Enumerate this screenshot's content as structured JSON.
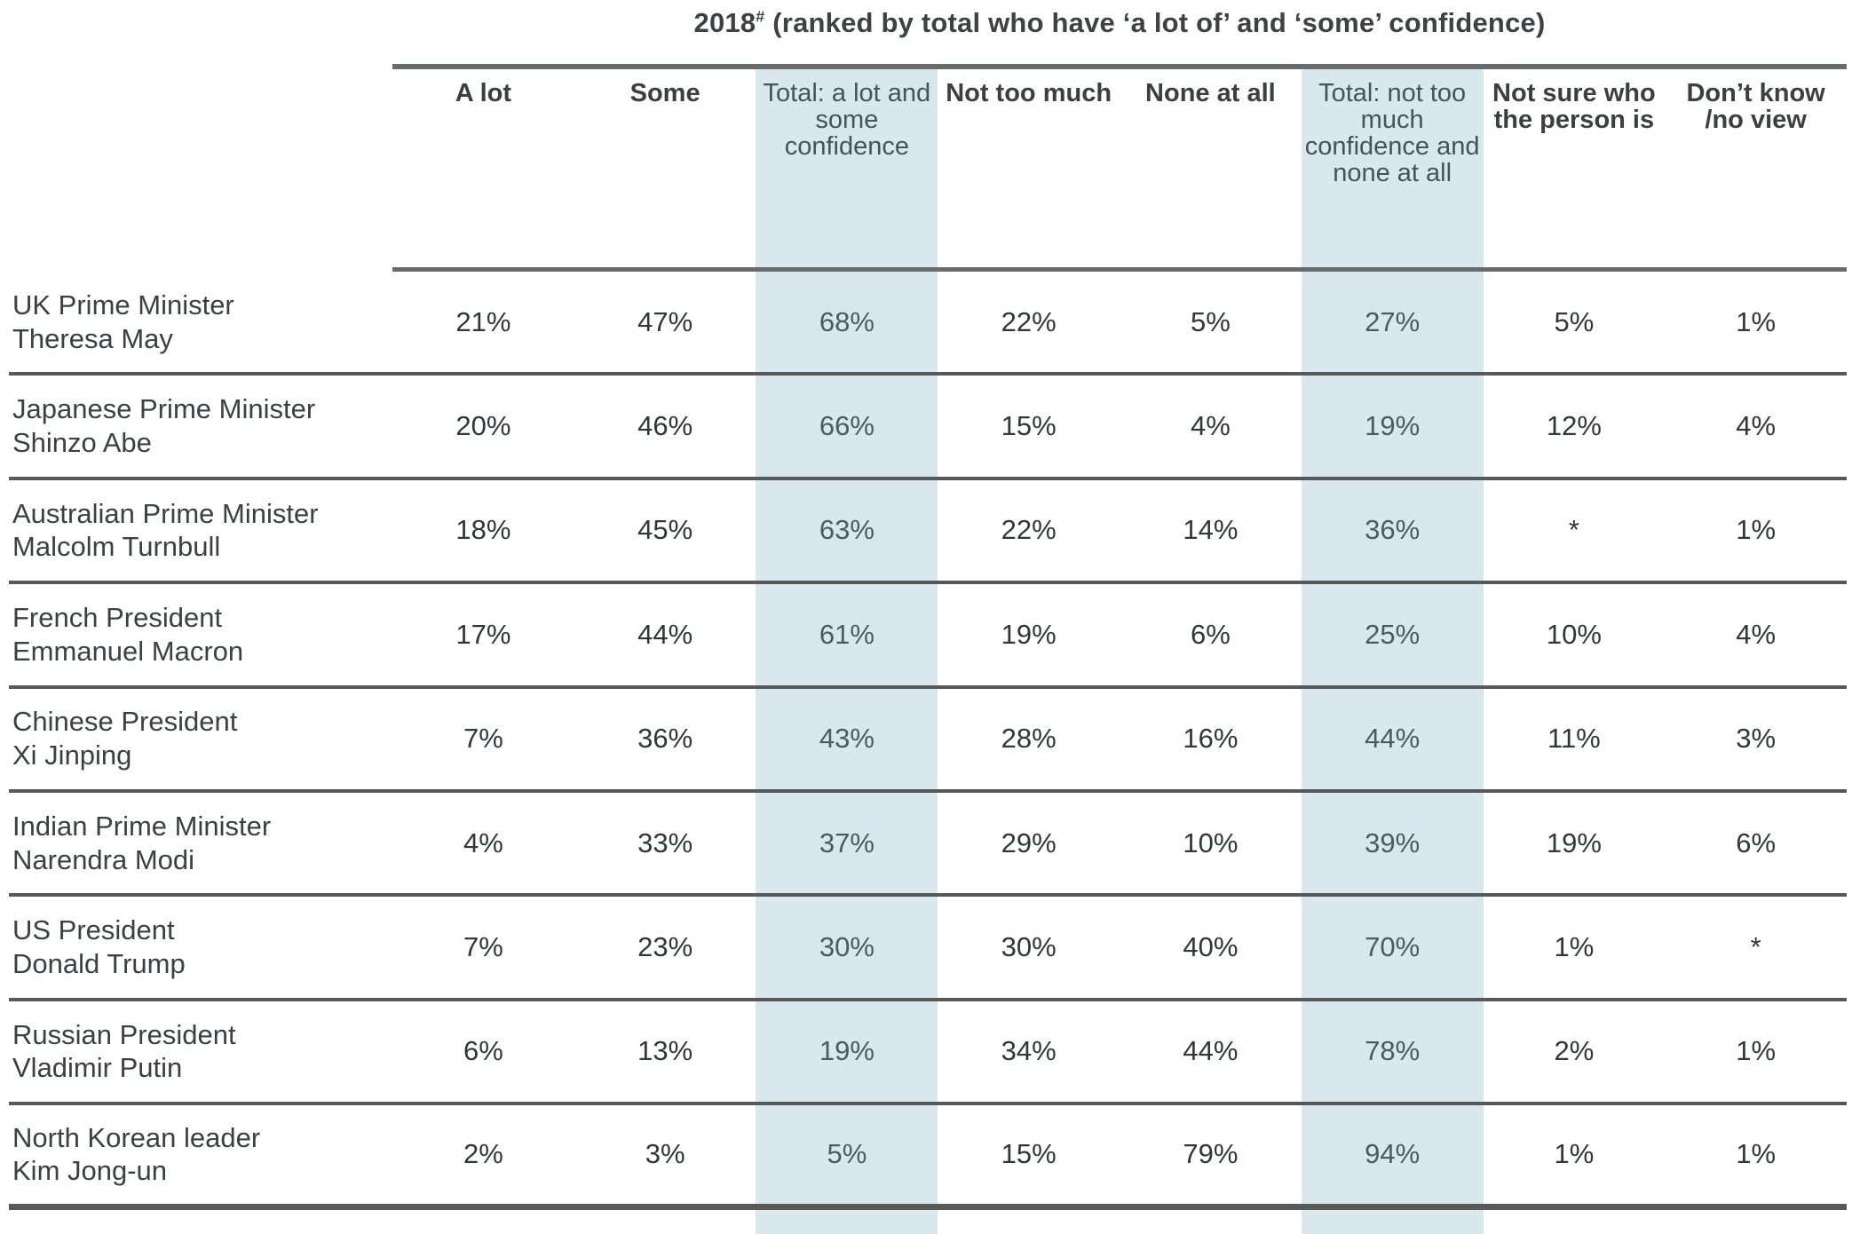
{
  "title": {
    "year": "2018",
    "superscript": "#",
    "rest": " (ranked by total who have ‘a lot of’ and ‘some’ confidence)"
  },
  "colors": {
    "highlight_band": "#d8e8ec",
    "text_primary": "#333639",
    "text_highlight_column": "#4d5a62",
    "header_rule": "#6a6b6d",
    "row_rule": "#57585a"
  },
  "table": {
    "columns": [
      {
        "label": "A lot",
        "highlighted": false
      },
      {
        "label": "Some",
        "highlighted": false
      },
      {
        "label": "Total: a lot and some confidence",
        "highlighted": true
      },
      {
        "label": "Not too much",
        "highlighted": false
      },
      {
        "label": "None at all",
        "highlighted": false
      },
      {
        "label": "Total: not too much confidence and none at all",
        "highlighted": true
      },
      {
        "label": "Not sure who the person is",
        "highlighted": false
      },
      {
        "label": "Don’t know /no view",
        "highlighted": false
      }
    ],
    "rows": [
      {
        "line1": "UK Prime Minister",
        "line2": "Theresa May",
        "values": [
          "21%",
          "47%",
          "68%",
          "22%",
          "5%",
          "27%",
          "5%",
          "1%"
        ]
      },
      {
        "line1": "Japanese Prime Minister",
        "line2": "Shinzo Abe",
        "values": [
          "20%",
          "46%",
          "66%",
          "15%",
          "4%",
          "19%",
          "12%",
          "4%"
        ]
      },
      {
        "line1": "Australian Prime Minister",
        "line2": "Malcolm Turnbull",
        "values": [
          "18%",
          "45%",
          "63%",
          "22%",
          "14%",
          "36%",
          "*",
          "1%"
        ]
      },
      {
        "line1": "French President",
        "line2": "Emmanuel Macron",
        "values": [
          "17%",
          "44%",
          "61%",
          "19%",
          "6%",
          "25%",
          "10%",
          "4%"
        ]
      },
      {
        "line1": "Chinese President",
        "line2": "Xi Jinping",
        "values": [
          "7%",
          "36%",
          "43%",
          "28%",
          "16%",
          "44%",
          "11%",
          "3%"
        ]
      },
      {
        "line1": "Indian Prime Minister",
        "line2": "Narendra Modi",
        "values": [
          "4%",
          "33%",
          "37%",
          "29%",
          "10%",
          "39%",
          "19%",
          "6%"
        ]
      },
      {
        "line1": "US President",
        "line2": "Donald Trump",
        "values": [
          "7%",
          "23%",
          "30%",
          "30%",
          "40%",
          "70%",
          "1%",
          "*"
        ]
      },
      {
        "line1": "Russian President",
        "line2": "Vladimir Putin",
        "values": [
          "6%",
          "13%",
          "19%",
          "34%",
          "44%",
          "78%",
          "2%",
          "1%"
        ]
      },
      {
        "line1": "North Korean leader",
        "line2": "Kim Jong-un",
        "values": [
          "2%",
          "3%",
          "5%",
          "15%",
          "79%",
          "94%",
          "1%",
          "1%"
        ]
      }
    ]
  },
  "chart_data": {
    "type": "table",
    "title": "2018# (ranked by total who have ‘a lot of’ and ‘some’ confidence)",
    "columns": [
      "A lot",
      "Some",
      "Total: a lot and some confidence",
      "Not too much",
      "None at all",
      "Total: not too much confidence and none at all",
      "Not sure who the person is",
      "Don’t know /no view"
    ],
    "row_labels": [
      "UK Prime Minister Theresa May",
      "Japanese Prime Minister Shinzo Abe",
      "Australian Prime Minister Malcolm Turnbull",
      "French President Emmanuel Macron",
      "Chinese President Xi Jinping",
      "Indian Prime Minister Narendra Modi",
      "US President Donald Trump",
      "Russian President Vladimir Putin",
      "North Korean leader Kim Jong-un"
    ],
    "values": [
      [
        "21%",
        "47%",
        "68%",
        "22%",
        "5%",
        "27%",
        "5%",
        "1%"
      ],
      [
        "20%",
        "46%",
        "66%",
        "15%",
        "4%",
        "19%",
        "12%",
        "4%"
      ],
      [
        "18%",
        "45%",
        "63%",
        "22%",
        "14%",
        "36%",
        "*",
        "1%"
      ],
      [
        "17%",
        "44%",
        "61%",
        "19%",
        "6%",
        "25%",
        "10%",
        "4%"
      ],
      [
        "7%",
        "36%",
        "43%",
        "28%",
        "16%",
        "44%",
        "11%",
        "3%"
      ],
      [
        "4%",
        "33%",
        "37%",
        "29%",
        "10%",
        "39%",
        "19%",
        "6%"
      ],
      [
        "7%",
        "23%",
        "30%",
        "30%",
        "40%",
        "70%",
        "1%",
        "*"
      ],
      [
        "6%",
        "13%",
        "19%",
        "34%",
        "44%",
        "78%",
        "2%",
        "1%"
      ],
      [
        "2%",
        "3%",
        "5%",
        "15%",
        "79%",
        "94%",
        "1%",
        "1%"
      ]
    ],
    "highlighted_column_indexes": [
      2,
      5
    ]
  }
}
